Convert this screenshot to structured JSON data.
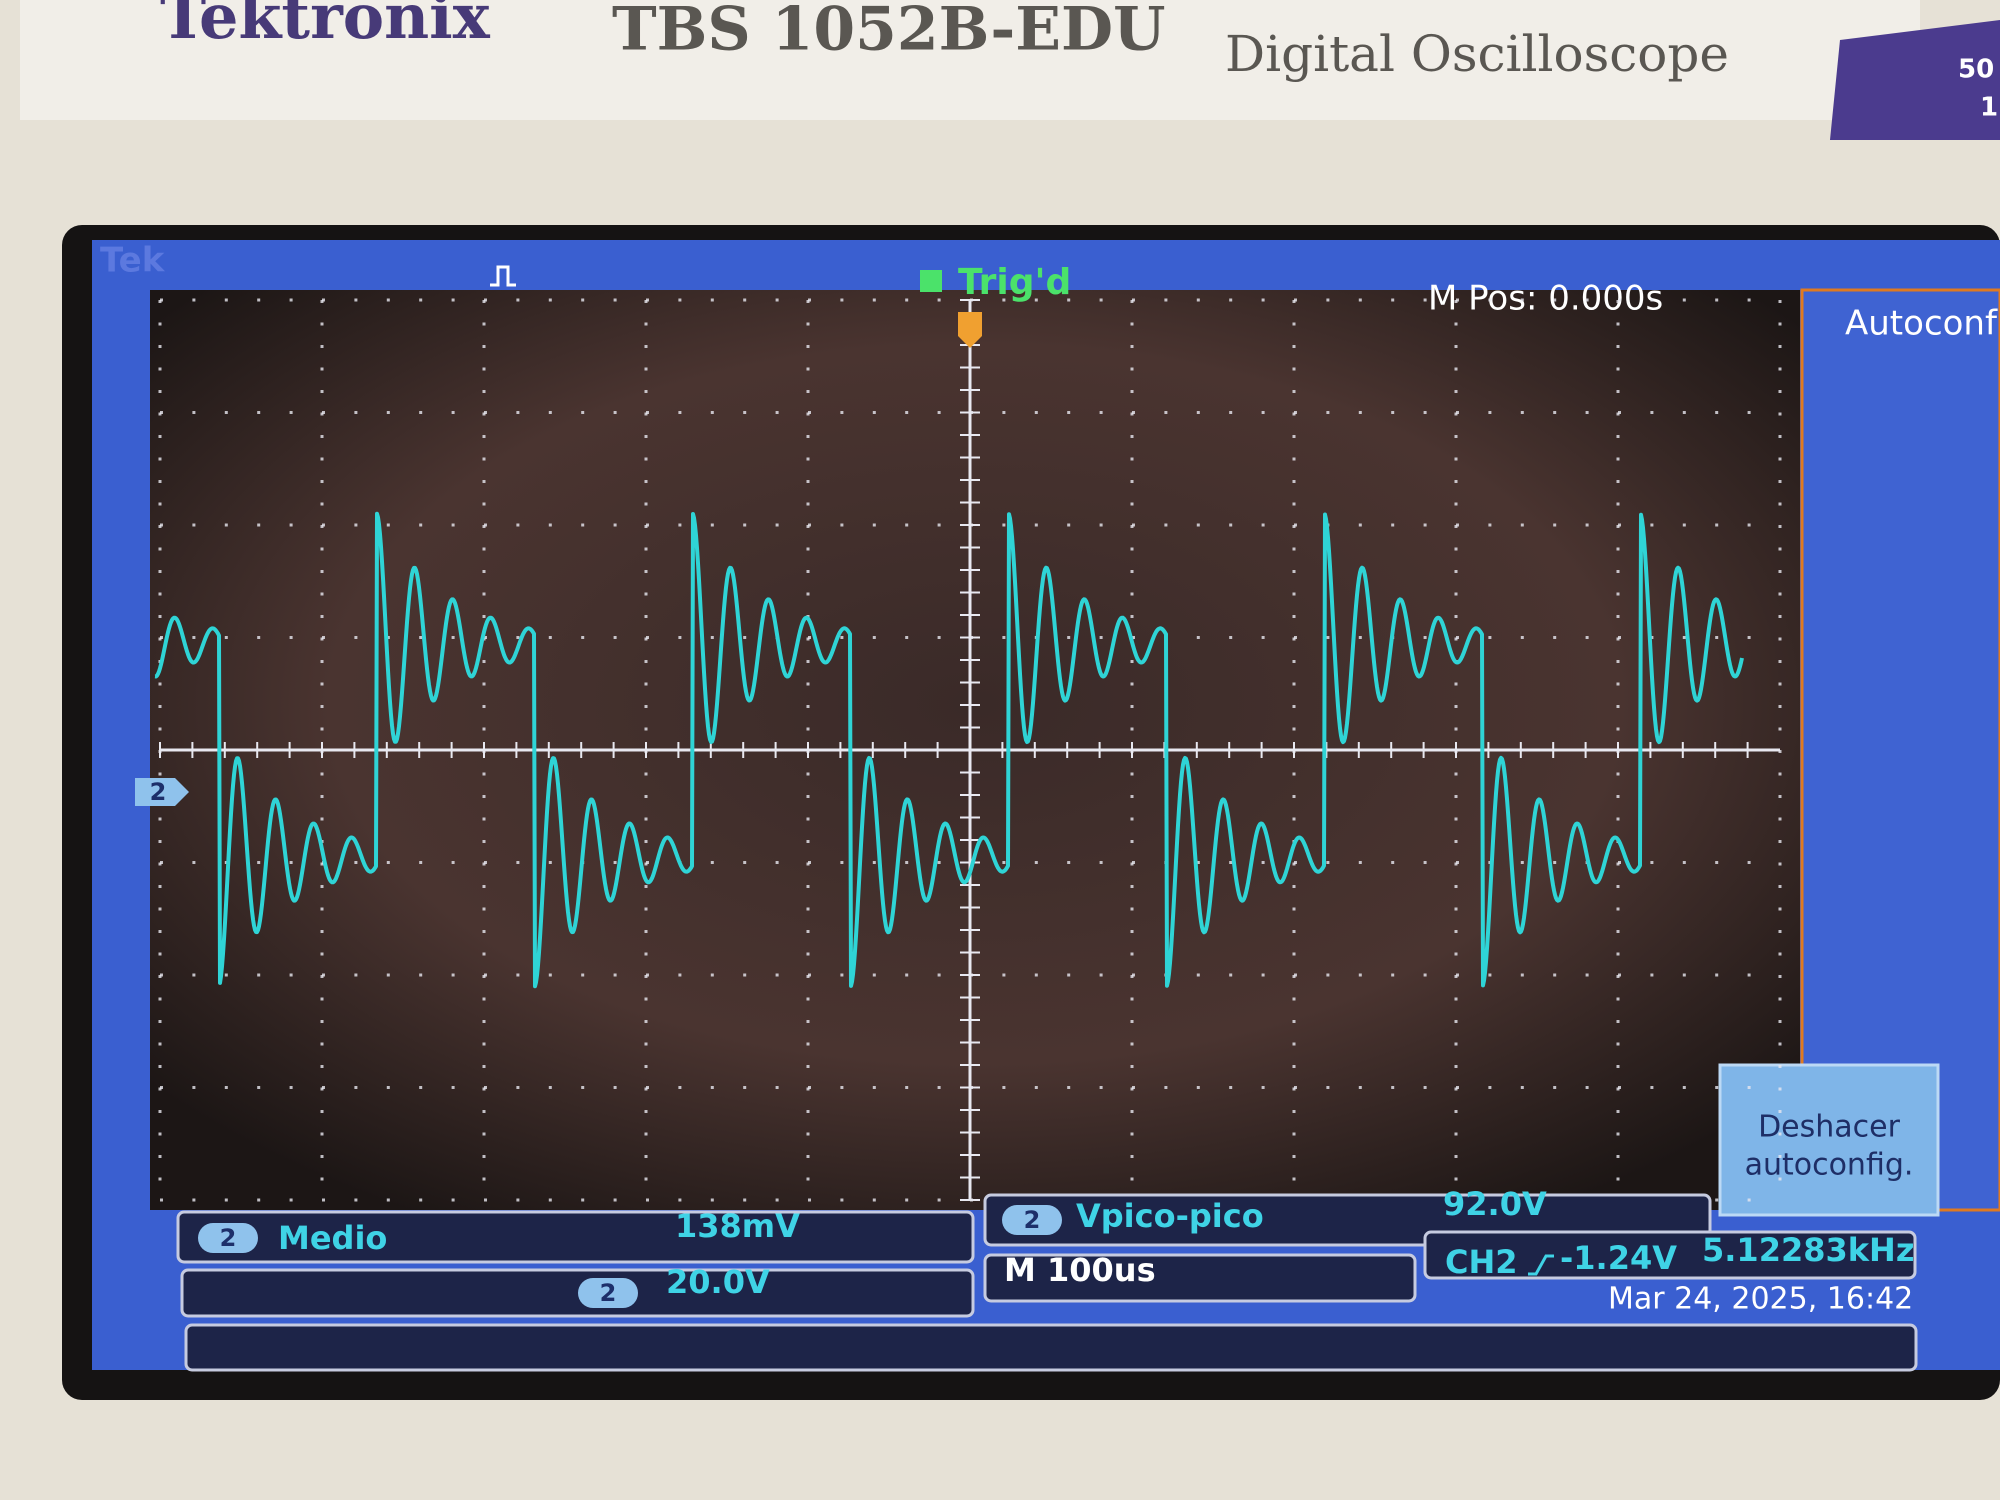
{
  "header": {
    "brand": "Tektronix",
    "model": "TBS 1052B-EDU",
    "description": "Digital Oscilloscope",
    "corner": [
      "50",
      "1"
    ]
  },
  "status": {
    "logo": "Tek",
    "trigger_state": "Trig'd",
    "position": "M Pos: 0.000s"
  },
  "menu": {
    "title": "Autoconf",
    "undo": [
      "Deshacer",
      "autoconfig."
    ]
  },
  "channel_marker": "2",
  "measurements": [
    {
      "channel": "2",
      "name": "Medio",
      "value": "138mV"
    },
    {
      "channel": "2",
      "name": "Vpico-pico",
      "value": "92.0V"
    }
  ],
  "vertical": {
    "channel": "2",
    "scale": "20.0V"
  },
  "timebase": "M 100us",
  "trigger": {
    "source": "CH2",
    "level": "-1.24V"
  },
  "frequency": "5.12283kHz",
  "datetime": "Mar 24, 2025, 16:42"
}
